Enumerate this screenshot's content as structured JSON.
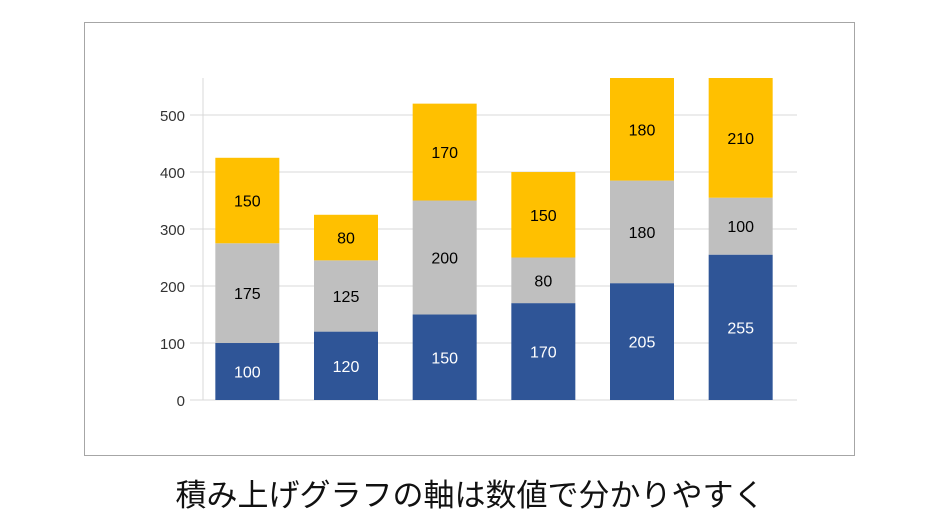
{
  "chart_data": {
    "type": "bar",
    "stacked": true,
    "categories": [
      "",
      "",
      "",
      "",
      "",
      ""
    ],
    "series": [
      {
        "values": [
          100,
          120,
          150,
          170,
          205,
          255
        ],
        "color": "#2F5597",
        "label_color": "#FFFFFF"
      },
      {
        "values": [
          175,
          125,
          200,
          80,
          180,
          100
        ],
        "color": "#BFBFBF",
        "label_color": "#000000"
      },
      {
        "values": [
          150,
          80,
          170,
          150,
          180,
          210
        ],
        "color": "#FFC000",
        "label_color": "#000000"
      }
    ],
    "yticks": [
      0,
      100,
      200,
      300,
      400,
      500
    ],
    "ylim": [
      0,
      565
    ],
    "grid": true,
    "legend": "none"
  },
  "caption": "積み上げグラフの軸は数値で分かりやすく"
}
